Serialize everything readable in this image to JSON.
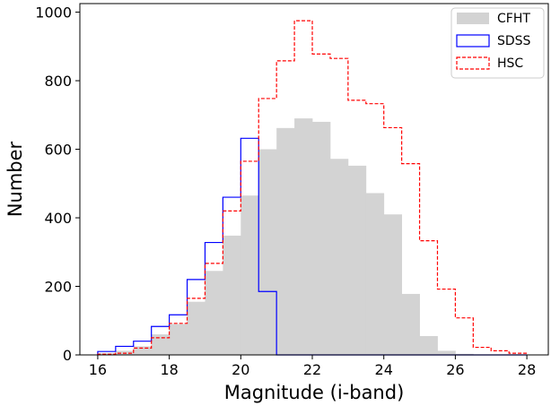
{
  "chart_data": {
    "type": "bar",
    "title": "",
    "xlabel": "Magnitude (i-band)",
    "ylabel": "Number",
    "xlim": [
      15.5,
      28.6
    ],
    "ylim": [
      0,
      1025
    ],
    "xticks": [
      16,
      18,
      20,
      22,
      24,
      26,
      28
    ],
    "yticks": [
      0,
      200,
      400,
      600,
      800,
      1000
    ],
    "bin_edges": [
      16.0,
      16.5,
      17.0,
      17.5,
      18.0,
      18.5,
      19.0,
      19.5,
      20.0,
      20.5,
      21.0,
      21.5,
      22.0,
      22.5,
      23.0,
      23.5,
      24.0,
      24.5,
      25.0,
      25.5,
      26.0,
      26.5,
      27.0,
      27.5,
      28.0
    ],
    "grid": false,
    "legend_position": "top-right",
    "series": [
      {
        "name": "CFHT",
        "style": "filled",
        "color": "#d3d3d3",
        "values": [
          5,
          12,
          25,
          60,
          90,
          155,
          245,
          348,
          465,
          600,
          662,
          690,
          680,
          572,
          552,
          472,
          410,
          178,
          55,
          12,
          3,
          1,
          0,
          0
        ]
      },
      {
        "name": "SDSS",
        "style": "step",
        "color": "#0000ff",
        "values": [
          10,
          25,
          40,
          83,
          117,
          220,
          328,
          460,
          632,
          185,
          0,
          0,
          0,
          0,
          0,
          0,
          0,
          0,
          0,
          0,
          0,
          0,
          0,
          0
        ]
      },
      {
        "name": "HSC",
        "style": "dashed-step",
        "color": "#ff0000",
        "values": [
          2,
          5,
          20,
          50,
          92,
          165,
          267,
          420,
          565,
          748,
          858,
          975,
          878,
          865,
          743,
          733,
          663,
          558,
          333,
          192,
          108,
          22,
          12,
          5
        ]
      }
    ]
  }
}
